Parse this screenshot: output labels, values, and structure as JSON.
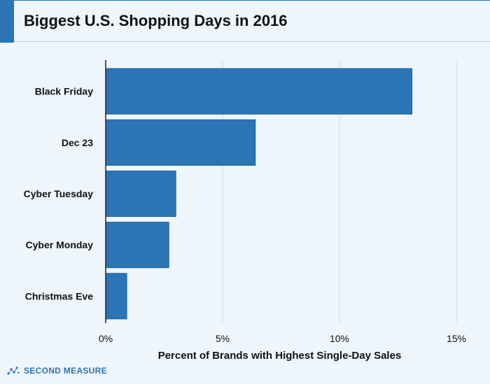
{
  "title": "Biggest U.S. Shopping Days in 2016",
  "brand": {
    "name": "SECOND MEASURE",
    "icon": "dot-network-icon"
  },
  "colors": {
    "bar": "#2b74b6",
    "accent": "#2b74b6",
    "grid": "#d7dde2",
    "axis": "#222222",
    "background": "#eef5fb"
  },
  "chart_data": {
    "type": "bar",
    "orientation": "horizontal",
    "title": "Biggest U.S. Shopping Days in 2016",
    "xlabel": "Percent of Brands with Highest Single-Day Sales",
    "ylabel": "",
    "categories": [
      "Black Friday",
      "Dec 23",
      "Cyber Tuesday",
      "Cyber Monday",
      "Christmas Eve"
    ],
    "values": [
      13.1,
      6.4,
      3.0,
      2.7,
      0.9
    ],
    "unit": "%",
    "xlim": [
      0,
      15
    ],
    "xticks": [
      0,
      5,
      10,
      15
    ],
    "xtick_labels": [
      "0%",
      "5%",
      "10%",
      "15%"
    ],
    "grid": "vertical",
    "legend": "none"
  }
}
